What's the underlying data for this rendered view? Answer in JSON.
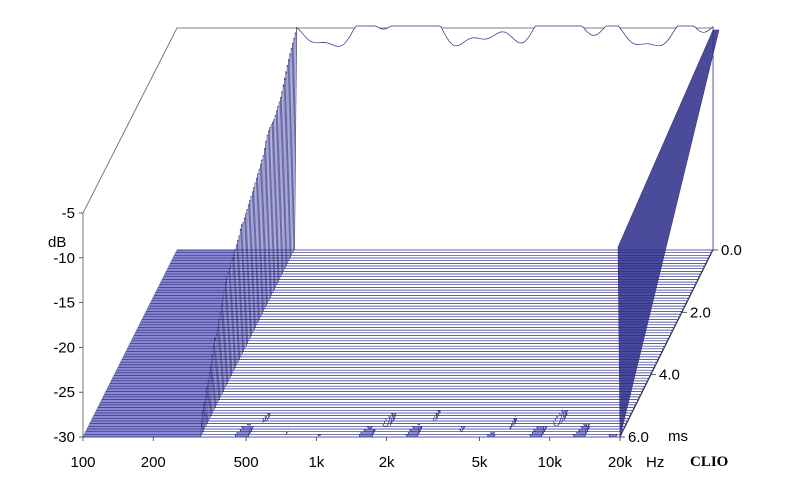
{
  "chart_data": {
    "type": "waterfall-3d",
    "title": "",
    "x_axis": {
      "unit": "Hz",
      "scale": "log",
      "range": [
        100,
        20000
      ],
      "ticks": [
        {
          "value": 100,
          "label": "100"
        },
        {
          "value": 200,
          "label": "200"
        },
        {
          "value": 500,
          "label": "500"
        },
        {
          "value": 1000,
          "label": "1k"
        },
        {
          "value": 2000,
          "label": "2k"
        },
        {
          "value": 5000,
          "label": "5k"
        },
        {
          "value": 10000,
          "label": "10k"
        },
        {
          "value": 20000,
          "label": "20k"
        }
      ]
    },
    "y_axis": {
      "unit": "dB",
      "range": [
        -30,
        -5
      ],
      "ticks": [
        {
          "value": -5,
          "label": "-5"
        },
        {
          "value": -10,
          "label": "-10"
        },
        {
          "value": -15,
          "label": "-15"
        },
        {
          "value": -20,
          "label": "-20"
        },
        {
          "value": -25,
          "label": "-25"
        },
        {
          "value": -30,
          "label": "-30"
        }
      ]
    },
    "z_axis": {
      "unit": "ms",
      "range": [
        0,
        6
      ],
      "ticks": [
        {
          "value": 0,
          "label": "0.0"
        },
        {
          "value": 2,
          "label": "2.0"
        },
        {
          "value": 4,
          "label": "4.0"
        },
        {
          "value": 6,
          "label": "6.0"
        }
      ]
    },
    "line_color": "#2b2b8a",
    "floor_color": "#8a8ad0",
    "grid": false
  },
  "logo": "CLIO"
}
